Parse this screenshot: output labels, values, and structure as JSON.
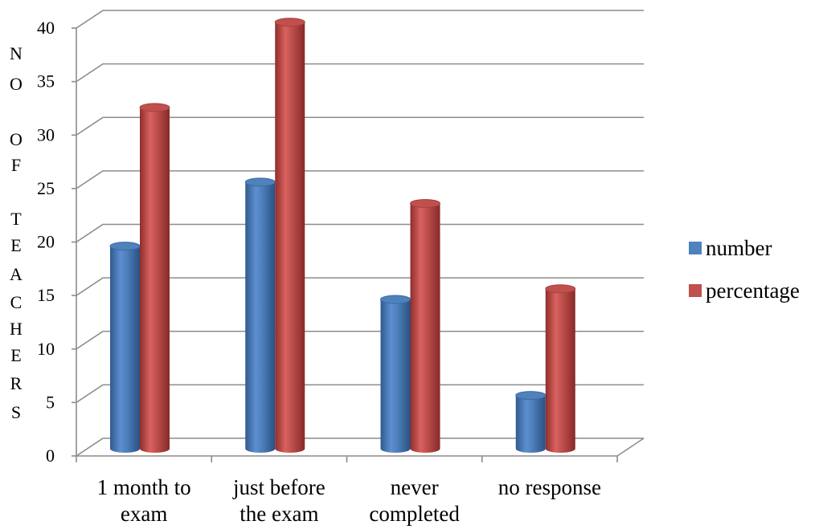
{
  "chart_data": {
    "type": "bar",
    "title": "",
    "xlabel": "",
    "ylabel": "NO OF TEACHERS",
    "ylabel_letters": [
      "N",
      "O",
      "O",
      "F",
      "T",
      "E",
      "A",
      "C",
      "H",
      "E",
      "R",
      "S"
    ],
    "ylim": [
      0,
      40
    ],
    "yticks": [
      "0",
      "5",
      "10",
      "15",
      "20",
      "25",
      "30",
      "35",
      "40"
    ],
    "categories": [
      [
        "1 month to",
        "exam"
      ],
      [
        "just before",
        "the exam"
      ],
      [
        "never",
        "completed"
      ],
      [
        "no response"
      ]
    ],
    "series": [
      {
        "name": "number",
        "values": [
          19,
          25,
          14,
          5
        ],
        "color": "#4f81bd"
      },
      {
        "name": "percentage",
        "values": [
          32,
          40,
          23,
          15
        ],
        "color": "#c0504d"
      }
    ],
    "grid": true,
    "legend": "right",
    "style": "3d-cylinder"
  }
}
